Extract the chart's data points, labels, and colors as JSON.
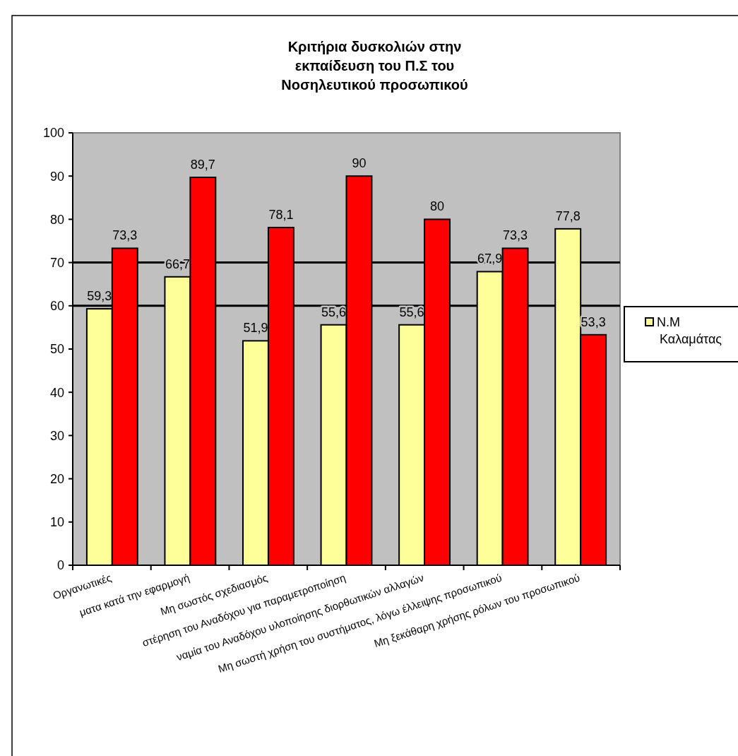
{
  "chart_data": {
    "type": "bar",
    "title": "Κριτήρια δυσκολιών στην\nεκπαίδευση του Π.Σ του\nΝοσηλευτικού προσωπικού",
    "categories": [
      "Οργανωτικές",
      "ματα κατά την εφαρμογή",
      "Μη σωστός σχεδιασμός",
      "στέρηση του Αναδόχου για παραμετροποίηση",
      "ναμία του Αναδόχου υλοποίησης διορθωτικών αλλαγών",
      "Μη σωστή χρήση του συστήματος, λόγω έλλειψης προσωπικού",
      "Μη ξεκάθαρη χρήσης ρόλων του  προσωπικού"
    ],
    "series": [
      {
        "name": "N.M Καλαμάτας",
        "color": "#ffff99",
        "values": [
          59.3,
          66.7,
          51.9,
          55.6,
          55.6,
          67.9,
          77.8
        ],
        "value_labels": [
          "59,3",
          "66,7",
          "51,9",
          "55,6",
          "55,6",
          "67,9",
          "77,8"
        ]
      },
      {
        "color": "#ff0000",
        "values": [
          73.3,
          89.7,
          78.1,
          90,
          80,
          73.3,
          53.3
        ],
        "value_labels": [
          "73,3",
          "89,7",
          "78,1",
          "90",
          "80",
          "73,3",
          "53,3"
        ]
      }
    ],
    "ylim": [
      0,
      100
    ],
    "yticks": [
      0,
      10,
      20,
      30,
      40,
      50,
      60,
      70,
      80,
      90,
      100
    ],
    "ref_lines": [
      {
        "axis": "y",
        "value": 60,
        "color": "#000000"
      },
      {
        "axis": "y",
        "value": 70,
        "color": "#000000"
      }
    ],
    "legend": "right"
  }
}
